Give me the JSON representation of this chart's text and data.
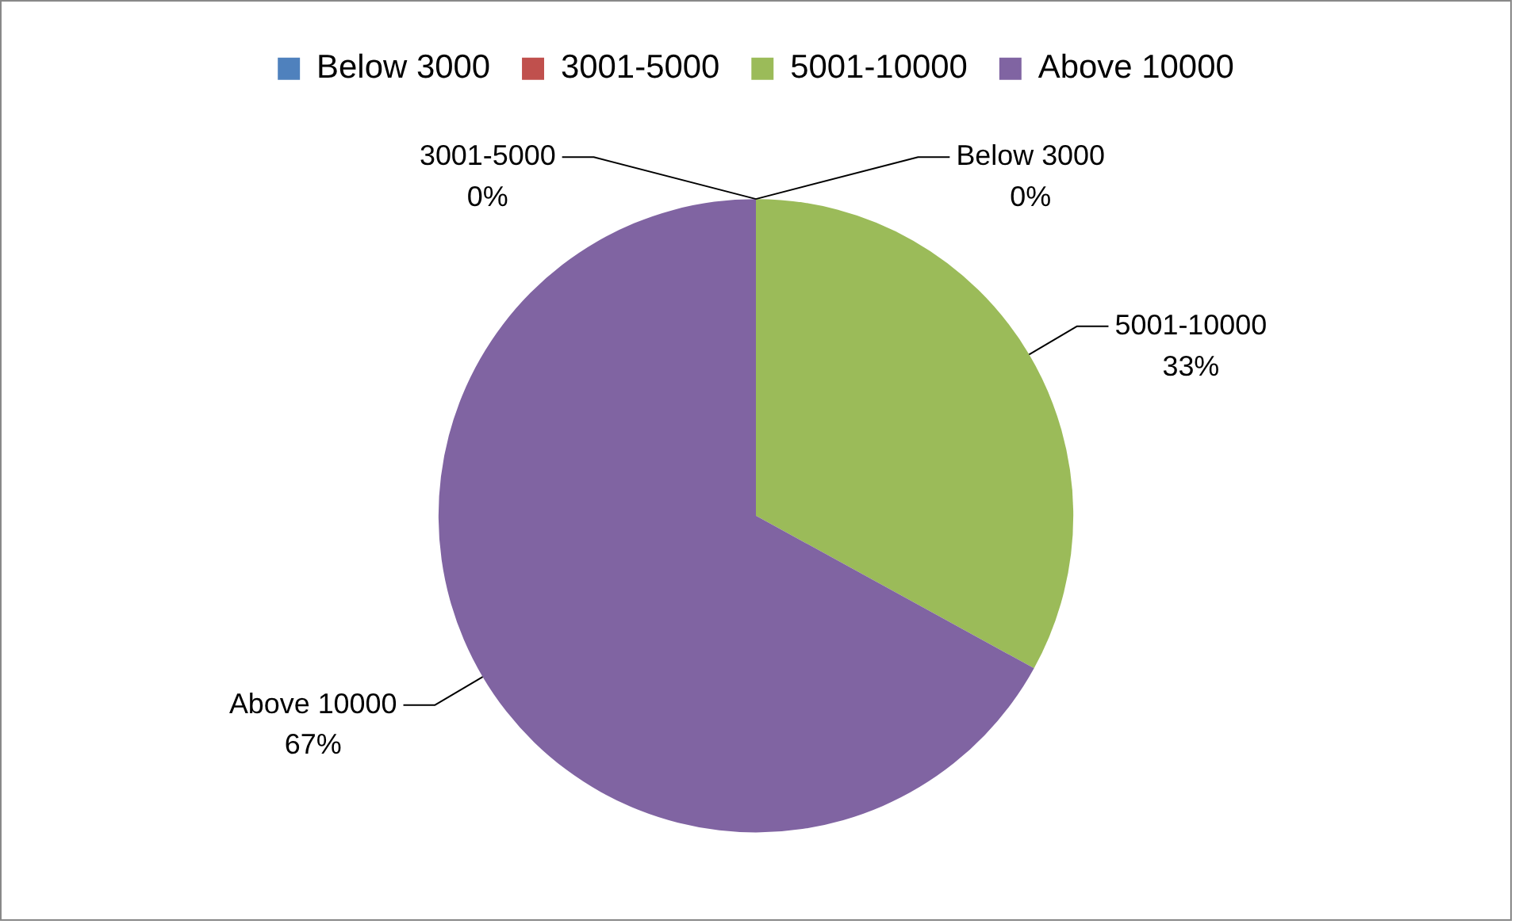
{
  "chart_data": {
    "type": "pie",
    "categories": [
      "Below 3000",
      "3001-5000",
      "5001-10000",
      "Above 10000"
    ],
    "values": [
      0,
      0,
      33,
      67
    ],
    "colors": [
      "#4f81bd",
      "#c0504d",
      "#9bbb59",
      "#8064a2"
    ],
    "value_labels": [
      "0%",
      "0%",
      "33%",
      "67%"
    ],
    "legend": "top"
  }
}
